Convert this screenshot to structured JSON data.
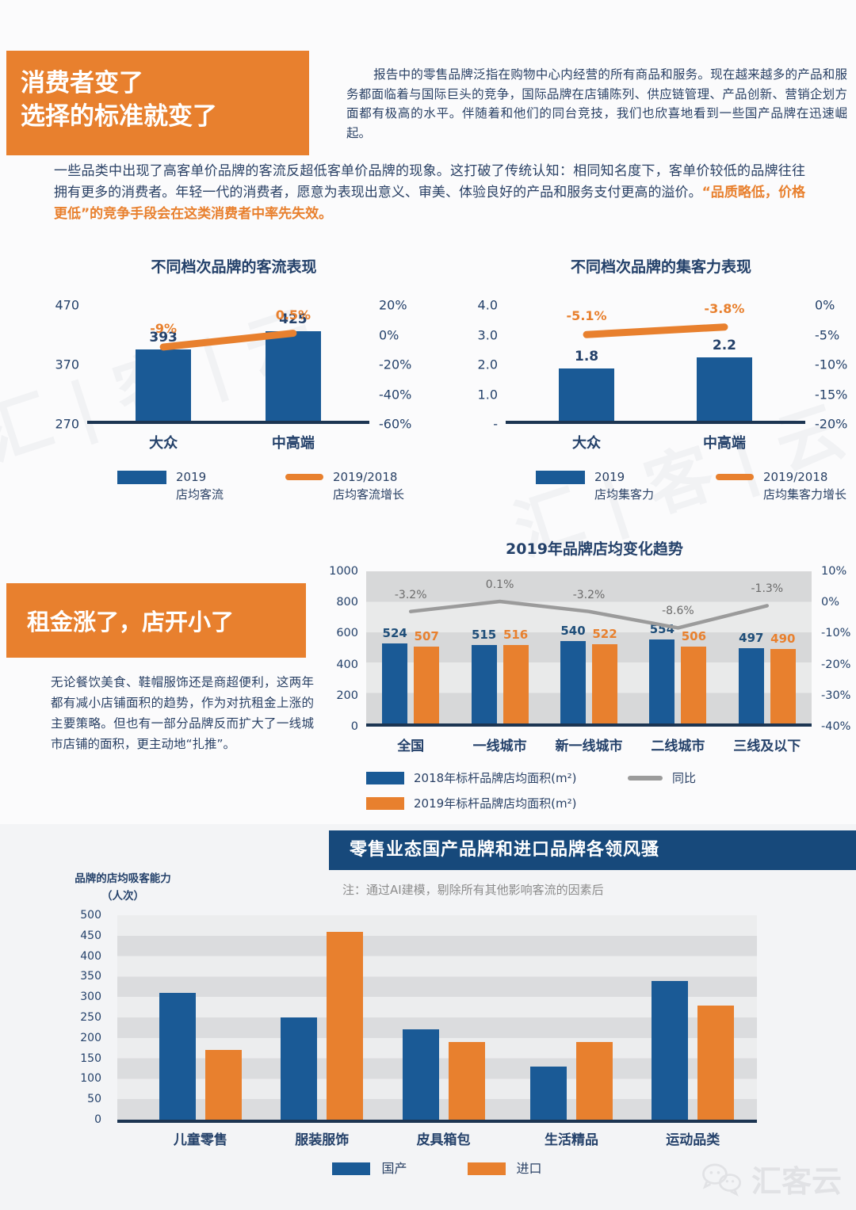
{
  "colors": {
    "orange": "#E8802E",
    "blue": "#1A5A96",
    "navy_text": "#24416A",
    "banner_blue": "#17497B",
    "trend_gray": "#9B9B9B",
    "note_gray": "#8C8C8C"
  },
  "header": {
    "title_line1": "消费者变了",
    "title_line2": "选择的标准就变了",
    "right_paragraph": "报告中的零售品牌泛指在购物中心内经营的所有商品和服务。现在越来越多的产品和服务都面临着与国际巨头的竞争，国际品牌在店铺陈列、供应链管理、产品创新、营销企划方面都有极高的水平。伴随着和他们的同台竞技，我们也欣喜地看到一些国产品牌在迅速崛起。"
  },
  "lead_paragraph": {
    "normal": "一些品类中出现了高客单价品牌的客流反超低客单价品牌的现象。这打破了传统认知：相同知名度下，客单价较低的品牌往往拥有更多的消费者。年轻一代的消费者，愿意为表现出意义、审美、体验良好的产品和服务支付更高的溢价。",
    "highlight": "“品质略低，价格更低”的竞争手段会在这类消费者中率先失效。"
  },
  "section2": {
    "box_title": "租金涨了，店开小了",
    "body": "无论餐饮美食、鞋帽服饰还是商超便利，这两年都有减小店铺面积的趋势，作为对抗租金上涨的主要策略。但也有一部分品牌反而扩大了一线城市店铺的面积，更主动地“扎推”。"
  },
  "section3": {
    "banner": "零售业态国产品牌和进口品牌各领风骚",
    "note": "注：通过AI建模，剔除所有其他影响客流的因素后",
    "ylabel_line1": "品牌的店均吸客能力",
    "ylabel_line2": "（人次）"
  },
  "watermark": "汇 | 客 | 云",
  "logo_text": "汇客云",
  "chart_data": [
    {
      "type": "bar+line",
      "title": "不同档次品牌的客流表现",
      "categories": [
        "大众",
        "中高端"
      ],
      "bars": {
        "name": "2019 店均客流",
        "values": [
          393,
          425
        ],
        "labels": [
          "393",
          "425"
        ]
      },
      "line": {
        "name": "2019/2018 店均客流增长",
        "values": [
          -9,
          0.5
        ],
        "labels": [
          "-9%",
          "0.5%"
        ]
      },
      "left_axis": {
        "min": 270,
        "max": 470,
        "ticks": [
          "470",
          "370",
          "270"
        ]
      },
      "right_axis": {
        "min": -60,
        "max": 20,
        "ticks": [
          "20%",
          "0%",
          "-20%",
          "-40%",
          "-60%"
        ]
      },
      "legend": [
        {
          "swatch": "bar",
          "label": "2019\n店均客流"
        },
        {
          "swatch": "line",
          "label": "2019/2018\n店均客流增长"
        }
      ]
    },
    {
      "type": "bar+line",
      "title": "不同档次品牌的集客力表现",
      "categories": [
        "大众",
        "中高端"
      ],
      "bars": {
        "name": "2019 店均集客力",
        "values": [
          1.8,
          2.2
        ],
        "labels": [
          "1.8",
          "2.2"
        ]
      },
      "line": {
        "name": "2019/2018 店均集客力增长",
        "values": [
          -5.1,
          -3.8
        ],
        "labels": [
          "-5.1%",
          "-3.8%"
        ]
      },
      "left_axis": {
        "min": 0,
        "max": 4,
        "ticks": [
          "4.0",
          "3.0",
          "2.0",
          "1.0",
          "-"
        ]
      },
      "right_axis": {
        "min": -20,
        "max": 0,
        "ticks": [
          "0%",
          "-5%",
          "-10%",
          "-15%",
          "-20%"
        ]
      },
      "legend": [
        {
          "swatch": "bar",
          "label": "2019\n店均集客力"
        },
        {
          "swatch": "line",
          "label": "2019/2018\n店均集客力增长"
        }
      ]
    },
    {
      "type": "grouped-bar+line",
      "title": "2019年品牌店均变化趋势",
      "categories": [
        "全国",
        "一线城市",
        "新一线城市",
        "二线城市",
        "三线及以下"
      ],
      "series": [
        {
          "name": "2018年标杆品牌店均面积(m²)",
          "values": [
            524,
            515,
            540,
            554,
            497
          ]
        },
        {
          "name": "2019年标杆品牌店均面积(m²)",
          "values": [
            507,
            516,
            522,
            506,
            490
          ]
        }
      ],
      "line": {
        "name": "同比",
        "values": [
          -3.2,
          0.1,
          -3.2,
          -8.6,
          -1.3
        ],
        "labels": [
          "-3.2%",
          "0.1%",
          "-3.2%",
          "-8.6%",
          "-1.3%"
        ]
      },
      "left_axis": {
        "min": 0,
        "max": 1000,
        "ticks": [
          "1000",
          "800",
          "600",
          "400",
          "200",
          "0"
        ]
      },
      "right_axis": {
        "min": -40,
        "max": 10,
        "ticks": [
          "10%",
          "0%",
          "-10%",
          "-20%",
          "-30%",
          "-40%"
        ]
      }
    },
    {
      "type": "grouped-bar",
      "title": "零售业态国产品牌和进口品牌各领风骚",
      "ylabel": "品牌的店均吸客能力（人次）",
      "categories": [
        "儿童零售",
        "服装服饰",
        "皮具箱包",
        "生活精品",
        "运动品类"
      ],
      "series": [
        {
          "name": "国产",
          "values": [
            310,
            250,
            220,
            130,
            340
          ]
        },
        {
          "name": "进口",
          "values": [
            170,
            460,
            190,
            190,
            280
          ]
        }
      ],
      "left_axis": {
        "min": 0,
        "max": 500,
        "ticks": [
          "500",
          "450",
          "400",
          "350",
          "300",
          "250",
          "200",
          "150",
          "100",
          "50",
          "0"
        ]
      }
    }
  ]
}
